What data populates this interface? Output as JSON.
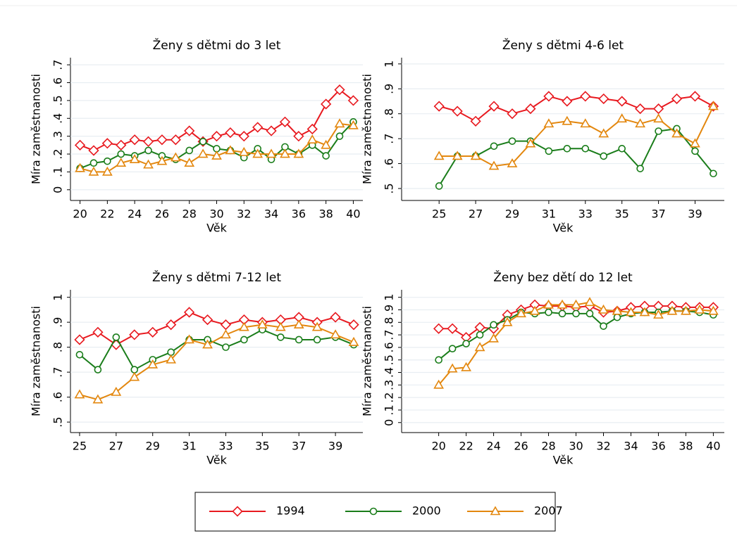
{
  "legend": [
    {
      "name": "1994",
      "color": "#e8191f",
      "marker": "diamond"
    },
    {
      "name": "2000",
      "color": "#1a7d1a",
      "marker": "circle"
    },
    {
      "name": "2007",
      "color": "#e3870e",
      "marker": "triangle"
    }
  ],
  "chart_data": [
    {
      "type": "line",
      "title": "Ženy s dětmi do 3 let",
      "xlabel": "Věk",
      "ylabel": "Míra zaměstnanosti",
      "grid": true,
      "x": [
        20,
        21,
        22,
        23,
        24,
        25,
        26,
        27,
        28,
        29,
        30,
        31,
        32,
        33,
        34,
        35,
        36,
        37,
        38,
        39,
        40
      ],
      "xlim": [
        19.3,
        40.7
      ],
      "ylim": [
        -0.06,
        0.74
      ],
      "xticks": [
        20,
        22,
        24,
        26,
        28,
        30,
        32,
        34,
        36,
        38,
        40
      ],
      "yticks": [
        0,
        {
          "value": 0.1,
          "label": ".1"
        },
        {
          "value": 0.2,
          "label": ".2"
        },
        {
          "value": 0.3,
          "label": ".3"
        },
        {
          "value": 0.4,
          "label": ".4"
        },
        {
          "value": 0.5,
          "label": ".5"
        },
        {
          "value": 0.6,
          "label": ".6"
        },
        {
          "value": 0.7,
          "label": ".7"
        }
      ],
      "series": [
        {
          "values": [
            0.25,
            0.22,
            0.26,
            0.25,
            0.28,
            0.27,
            0.28,
            0.28,
            0.33,
            0.27,
            0.3,
            0.32,
            0.3,
            0.35,
            0.33,
            0.38,
            0.3,
            0.34,
            0.48,
            0.56,
            0.5
          ]
        },
        {
          "values": [
            0.12,
            0.15,
            0.16,
            0.2,
            0.19,
            0.22,
            0.19,
            0.17,
            0.22,
            0.27,
            0.23,
            0.22,
            0.18,
            0.23,
            0.17,
            0.24,
            0.2,
            0.25,
            0.19,
            0.3,
            0.38
          ]
        },
        {
          "values": [
            0.12,
            0.1,
            0.1,
            0.15,
            0.17,
            0.14,
            0.16,
            0.18,
            0.15,
            0.2,
            0.19,
            0.22,
            0.21,
            0.2,
            0.2,
            0.2,
            0.2,
            0.28,
            0.25,
            0.37,
            0.36
          ]
        }
      ]
    },
    {
      "type": "line",
      "title": "Ženy s dětmi 4-6 let",
      "xlabel": "Věk",
      "ylabel": "Míra zaměstnanosti",
      "grid": true,
      "x": [
        25,
        26,
        27,
        28,
        29,
        30,
        31,
        32,
        33,
        34,
        35,
        36,
        37,
        38,
        39,
        40
      ],
      "xlim": [
        22.95,
        40.6
      ],
      "ylim": [
        0.452,
        1.025
      ],
      "xticks": [
        25,
        27,
        29,
        31,
        33,
        35,
        37,
        39
      ],
      "yticks": [
        {
          "value": 0.5,
          "label": ".5"
        },
        {
          "value": 0.6,
          "label": ".6"
        },
        {
          "value": 0.7,
          "label": ".7"
        },
        {
          "value": 0.8,
          "label": ".8"
        },
        {
          "value": 0.9,
          "label": ".9"
        },
        1
      ],
      "series": [
        {
          "values": [
            0.83,
            0.81,
            0.77,
            0.83,
            0.8,
            0.82,
            0.87,
            0.85,
            0.87,
            0.86,
            0.85,
            0.82,
            0.82,
            0.86,
            0.87,
            0.83
          ]
        },
        {
          "values": [
            0.51,
            0.63,
            0.63,
            0.67,
            0.69,
            0.69,
            0.65,
            0.66,
            0.66,
            0.63,
            0.66,
            0.58,
            0.73,
            0.74,
            0.65,
            0.56
          ]
        },
        {
          "values": [
            0.63,
            0.63,
            0.63,
            0.59,
            0.6,
            0.68,
            0.76,
            0.77,
            0.76,
            0.72,
            0.78,
            0.76,
            0.78,
            0.72,
            0.68,
            0.83
          ]
        }
      ]
    },
    {
      "type": "line",
      "title": "Ženy s dětmi 7-12 let",
      "xlabel": "Věk",
      "ylabel": "Míra zaměstnanosti",
      "grid": true,
      "x": [
        25,
        26,
        27,
        28,
        29,
        30,
        31,
        32,
        33,
        34,
        35,
        36,
        37,
        38,
        39,
        40
      ],
      "xlim": [
        24.5,
        40.5
      ],
      "ylim": [
        0.458,
        1.03
      ],
      "xticks": [
        25,
        27,
        29,
        31,
        33,
        35,
        37,
        39
      ],
      "yticks": [
        {
          "value": 0.5,
          "label": ".5"
        },
        {
          "value": 0.6,
          "label": ".6"
        },
        {
          "value": 0.7,
          "label": ".7"
        },
        {
          "value": 0.8,
          "label": ".8"
        },
        {
          "value": 0.9,
          "label": ".9"
        },
        1
      ],
      "series": [
        {
          "values": [
            0.83,
            0.86,
            0.81,
            0.85,
            0.86,
            0.89,
            0.94,
            0.91,
            0.89,
            0.91,
            0.9,
            0.91,
            0.92,
            0.9,
            0.92,
            0.89
          ]
        },
        {
          "values": [
            0.77,
            0.71,
            0.84,
            0.71,
            0.75,
            0.78,
            0.83,
            0.83,
            0.8,
            0.83,
            0.87,
            0.84,
            0.83,
            0.83,
            0.84,
            0.81
          ]
        },
        {
          "values": [
            0.61,
            0.59,
            0.62,
            0.68,
            0.73,
            0.75,
            0.83,
            0.81,
            0.85,
            0.88,
            0.89,
            0.88,
            0.89,
            0.88,
            0.85,
            0.82
          ]
        }
      ]
    },
    {
      "type": "line",
      "title": "Ženy bez dětí do 12 let",
      "xlabel": "Věk",
      "ylabel": "Míra zaměstnanosti",
      "grid": true,
      "x": [
        20,
        21,
        22,
        23,
        24,
        25,
        26,
        27,
        28,
        29,
        30,
        31,
        32,
        33,
        34,
        35,
        36,
        37,
        38,
        39,
        40
      ],
      "xlim": [
        17.3,
        40.8
      ],
      "ylim": [
        -0.08,
        1.06
      ],
      "xticks": [
        20,
        22,
        24,
        26,
        28,
        30,
        32,
        34,
        36,
        38,
        40
      ],
      "yticks": [
        0,
        {
          "value": 0.1,
          "label": ".1"
        },
        {
          "value": 0.2,
          "label": ".2"
        },
        {
          "value": 0.3,
          "label": ".3"
        },
        {
          "value": 0.4,
          "label": ".4"
        },
        {
          "value": 0.5,
          "label": ".5"
        },
        {
          "value": 0.6,
          "label": ".6"
        },
        {
          "value": 0.7,
          "label": ".7"
        },
        {
          "value": 0.8,
          "label": ".8"
        },
        {
          "value": 0.9,
          "label": ".9"
        },
        1
      ],
      "series": [
        {
          "values": [
            0.75,
            0.75,
            0.68,
            0.76,
            0.75,
            0.86,
            0.9,
            0.94,
            0.93,
            0.93,
            0.92,
            0.93,
            0.88,
            0.89,
            0.92,
            0.93,
            0.93,
            0.93,
            0.92,
            0.92,
            0.92
          ]
        },
        {
          "values": [
            0.5,
            0.59,
            0.63,
            0.7,
            0.78,
            0.82,
            0.88,
            0.87,
            0.88,
            0.87,
            0.87,
            0.87,
            0.77,
            0.84,
            0.87,
            0.88,
            0.88,
            0.89,
            0.89,
            0.88,
            0.86
          ]
        },
        {
          "values": [
            0.3,
            0.43,
            0.44,
            0.6,
            0.67,
            0.8,
            0.87,
            0.89,
            0.94,
            0.94,
            0.94,
            0.96,
            0.9,
            0.89,
            0.88,
            0.88,
            0.86,
            0.89,
            0.89,
            0.9,
            0.89
          ]
        }
      ]
    }
  ]
}
